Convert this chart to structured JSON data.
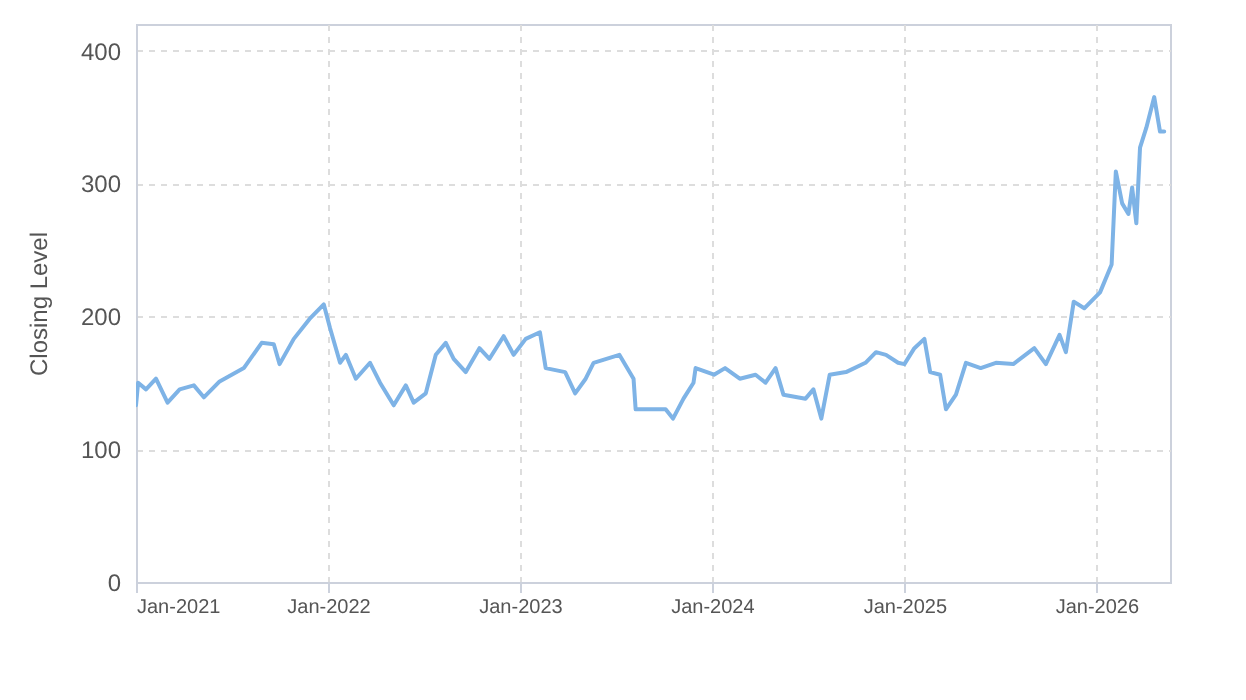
{
  "chart_data": {
    "type": "line",
    "ylabel": "Closing Level",
    "x": [
      "2021-01-01",
      "2021-01-05",
      "2021-01-20",
      "2021-02-08",
      "2021-03-02",
      "2021-03-25",
      "2021-04-21",
      "2021-05-10",
      "2021-06-09",
      "2021-07-25",
      "2021-08-28",
      "2021-09-20",
      "2021-10-01",
      "2021-10-28",
      "2021-11-27",
      "2021-12-24",
      "2022-01-05",
      "2022-01-24",
      "2022-02-04",
      "2022-02-23",
      "2022-03-22",
      "2022-04-10",
      "2022-05-06",
      "2022-05-29",
      "2022-06-13",
      "2022-07-06",
      "2022-07-25",
      "2022-08-13",
      "2022-08-28",
      "2022-09-20",
      "2022-10-16",
      "2022-11-04",
      "2022-12-01",
      "2022-12-20",
      "2023-01-12",
      "2023-02-08",
      "2023-02-19",
      "2023-03-28",
      "2023-04-16",
      "2023-05-06",
      "2023-05-21",
      "2023-07-09",
      "2023-08-05",
      "2023-08-09",
      "2023-10-05",
      "2023-10-19",
      "2023-11-08",
      "2023-11-27",
      "2023-12-01",
      "2024-01-05",
      "2024-01-26",
      "2024-02-23",
      "2024-03-24",
      "2024-04-12",
      "2024-05-01",
      "2024-05-16",
      "2024-06-27",
      "2024-07-12",
      "2024-07-27",
      "2024-08-12",
      "2024-09-12",
      "2024-10-19",
      "2024-11-08",
      "2024-11-27",
      "2024-12-20",
      "2025-01-01",
      "2025-01-20",
      "2025-02-08",
      "2025-02-19",
      "2025-03-10",
      "2025-03-21",
      "2025-04-09",
      "2025-04-28",
      "2025-05-26",
      "2025-06-24",
      "2025-07-27",
      "2025-09-05",
      "2025-09-27",
      "2025-10-23",
      "2025-11-04",
      "2025-11-19",
      "2025-12-09",
      "2026-01-08",
      "2026-01-30",
      "2026-02-07",
      "2026-02-19",
      "2026-03-03",
      "2026-03-10",
      "2026-03-18",
      "2026-03-25",
      "2026-04-06",
      "2026-04-21",
      "2026-05-02",
      "2026-05-10"
    ],
    "series": [
      {
        "color": "#7eb3e6",
        "values": [
          133,
          150,
          145,
          153,
          135,
          145,
          148,
          139,
          151,
          161,
          180,
          179,
          164,
          183,
          198,
          209,
          191,
          165,
          171,
          153,
          165,
          150,
          133,
          148,
          135,
          142,
          171,
          180,
          168,
          158,
          176,
          168,
          185,
          171,
          183,
          188,
          161,
          158,
          142,
          153,
          165,
          171,
          153,
          130,
          130,
          123,
          138,
          150,
          161,
          156,
          161,
          153,
          156,
          150,
          161,
          141,
          138,
          145,
          123,
          156,
          158,
          165,
          173,
          171,
          165,
          164,
          176,
          183,
          158,
          156,
          130,
          141,
          165,
          161,
          165,
          164,
          176,
          164,
          186,
          173,
          211,
          206,
          218,
          239,
          309,
          285,
          277,
          297,
          270,
          327,
          342,
          365,
          339,
          339
        ]
      }
    ],
    "xlim": [
      "2021-01-01",
      "2026-05-21"
    ],
    "xticks": [
      {
        "value": "2021-01-01",
        "label": "Jan-2021"
      },
      {
        "value": "2022-01-01",
        "label": "Jan-2022"
      },
      {
        "value": "2023-01-01",
        "label": "Jan-2023"
      },
      {
        "value": "2024-01-01",
        "label": "Jan-2024"
      },
      {
        "value": "2025-01-01",
        "label": "Jan-2025"
      },
      {
        "value": "2026-01-01",
        "label": "Jan-2026"
      }
    ],
    "ylim": [
      0,
      420
    ],
    "yticks": [
      0,
      100,
      200,
      300,
      400
    ],
    "grid": true,
    "line_style": "solid",
    "marker": "none"
  }
}
